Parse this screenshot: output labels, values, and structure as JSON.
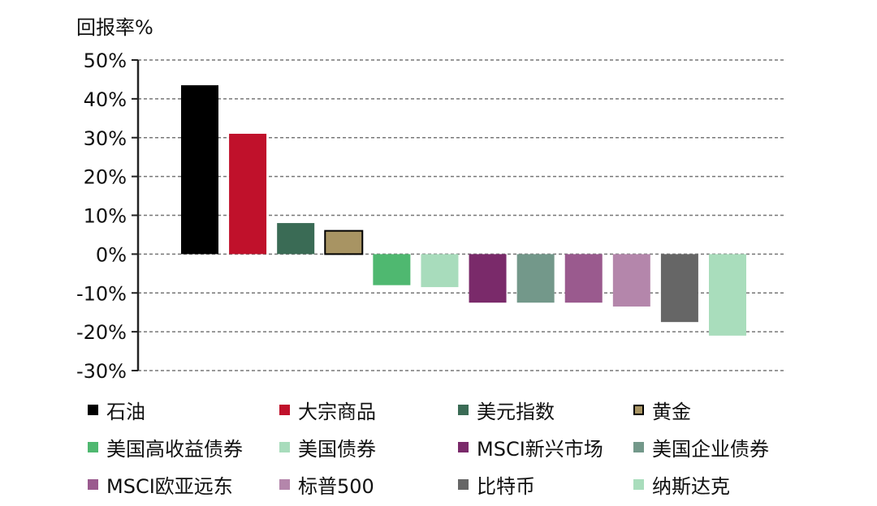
{
  "chart_data": {
    "type": "bar",
    "ylabel": "回报率%",
    "ylim": [
      -30,
      50
    ],
    "yticks": [
      50,
      40,
      30,
      20,
      10,
      0,
      -10,
      -20,
      -30
    ],
    "ytick_labels": [
      "50%",
      "40%",
      "30%",
      "20%",
      "10%",
      "0%",
      "-10%",
      "-20%",
      "-30%"
    ],
    "grid": true,
    "legend_position": "bottom",
    "categories": [
      "石油",
      "大宗商品",
      "美元指数",
      "黄金",
      "美国高收益债券",
      "美国债券",
      "MSCI新兴市场",
      "美国企业债券",
      "MSCI欧亚远东",
      "标普500",
      "比特币",
      "纳斯达克"
    ],
    "values": [
      43.5,
      31,
      8,
      6,
      -8,
      -8.5,
      -12.5,
      -12.5,
      -12.5,
      -13.5,
      -17.5,
      -21
    ],
    "colors": [
      "#000000",
      "#c0112b",
      "#3a6b55",
      "#a89463",
      "#4fb870",
      "#a8dcbc",
      "#7a2a6a",
      "#73988a",
      "#9a5a8e",
      "#b486ab",
      "#666666",
      "#a9ddbc"
    ],
    "outlined": [
      false,
      false,
      false,
      true,
      false,
      false,
      false,
      false,
      false,
      false,
      false,
      false
    ]
  }
}
